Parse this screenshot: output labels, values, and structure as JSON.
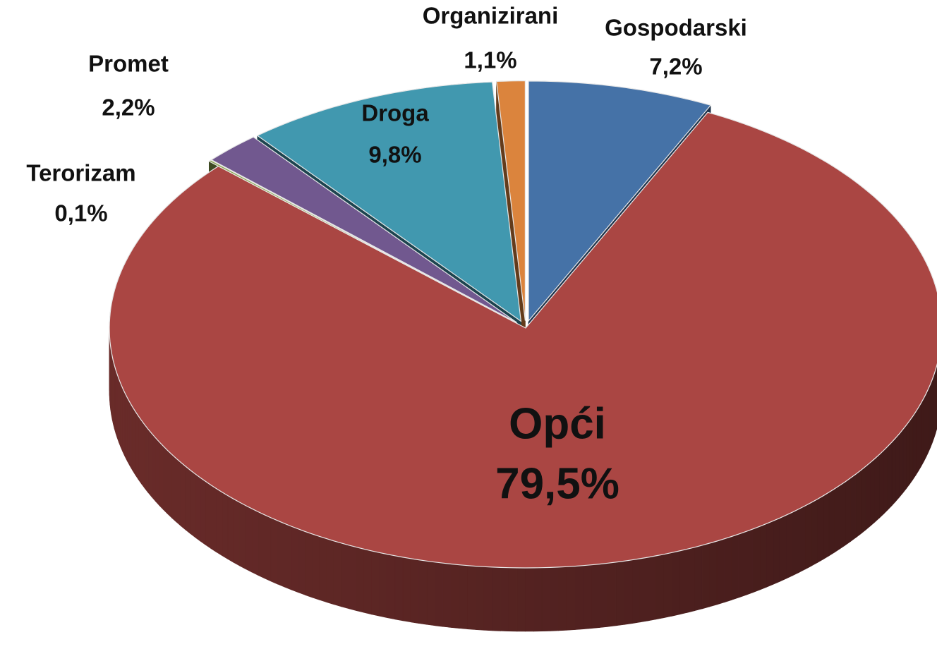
{
  "chart_data": {
    "type": "pie",
    "categories": [
      "Gospodarski",
      "Opći",
      "Terorizam",
      "Promet",
      "Droga",
      "Organizirani"
    ],
    "values": [
      7.2,
      79.5,
      0.1,
      2.2,
      9.8,
      1.1
    ],
    "value_labels": [
      "7,2%",
      "79,5%",
      "0,1%",
      "2,2%",
      "9,8%",
      "1,1%"
    ],
    "colors": [
      "#4572a7",
      "#aa4643",
      "#89a54e",
      "#71588f",
      "#4198af",
      "#db843d"
    ]
  }
}
